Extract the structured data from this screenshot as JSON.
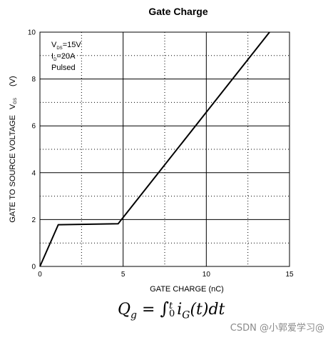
{
  "chart_data": {
    "type": "line",
    "title": "Gate Charge",
    "xlabel": "GATE CHARGE (nC)",
    "ylabel": "GATE TO SOURCE VOLTAGE",
    "ylabel_symbol": "V",
    "ylabel_symbol_sub": "GS",
    "ylabel_unit": "(V)",
    "xlim": [
      0,
      15
    ],
    "ylim": [
      0,
      10
    ],
    "xticks": [
      "0",
      "5",
      "10",
      "15"
    ],
    "yticks": [
      "0",
      "2",
      "4",
      "6",
      "8",
      "10"
    ],
    "grid": {
      "major": true,
      "minor_dotted": true
    },
    "annotations": [
      {
        "main": "V",
        "sub": "DS",
        "tail": "=15V"
      },
      {
        "main": "I",
        "sub": "D",
        "tail": "=20A"
      },
      {
        "main": "Pulsed",
        "sub": "",
        "tail": ""
      }
    ],
    "series": [
      {
        "x": [
          0,
          1.1,
          4.7,
          13.8
        ],
        "y": [
          0,
          1.78,
          1.82,
          10
        ]
      }
    ]
  },
  "formula": {
    "lhs_main": "Q",
    "lhs_sub": "g",
    "equals": " = ",
    "integral": "∫",
    "lower": "0",
    "upper": "t",
    "i_main": "i",
    "i_sub": "G",
    "tail": "(t)dt"
  },
  "watermark": "CSDN @小郭爱学习@"
}
